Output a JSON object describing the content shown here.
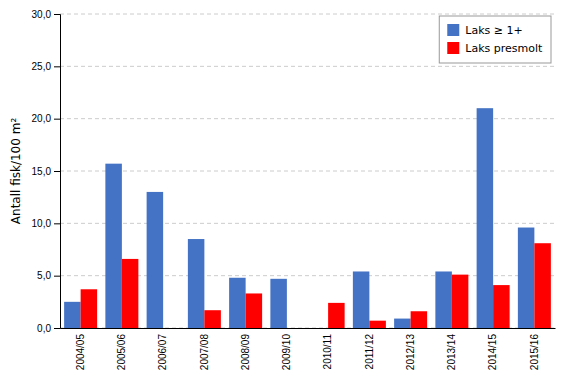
{
  "chart_data": {
    "type": "bar",
    "categories": [
      "2004/05",
      "2005/06",
      "2006/07",
      "2007/08",
      "2008/09",
      "2009/10",
      "2010/11",
      "2011/12",
      "2012/13",
      "2013/14",
      "2014/15",
      "2015/16"
    ],
    "series": [
      {
        "name": "Laks ≥ 1+",
        "color": "#4472C4",
        "values": [
          2.5,
          15.7,
          13.0,
          8.5,
          4.8,
          4.7,
          0.0,
          5.4,
          0.9,
          5.4,
          21.0,
          9.6
        ]
      },
      {
        "name": "Laks presmolt",
        "color": "#FF0000",
        "values": [
          3.7,
          6.6,
          0.0,
          1.7,
          3.3,
          0.0,
          2.4,
          0.7,
          1.6,
          5.1,
          4.1,
          8.1
        ]
      }
    ],
    "ylabel": "Antall fisk/100 m²",
    "ylim": [
      0,
      30
    ],
    "yticks": [
      {
        "value": 0.0,
        "label": "0,0"
      },
      {
        "value": 5.0,
        "label": "5,0"
      },
      {
        "value": 10.0,
        "label": "10,0"
      },
      {
        "value": 15.0,
        "label": "15,0"
      },
      {
        "value": 20.0,
        "label": "20,0"
      },
      {
        "value": 25.0,
        "label": "25,0"
      },
      {
        "value": 30.0,
        "label": "30,0"
      }
    ],
    "grid": true,
    "legend": "upper right"
  }
}
